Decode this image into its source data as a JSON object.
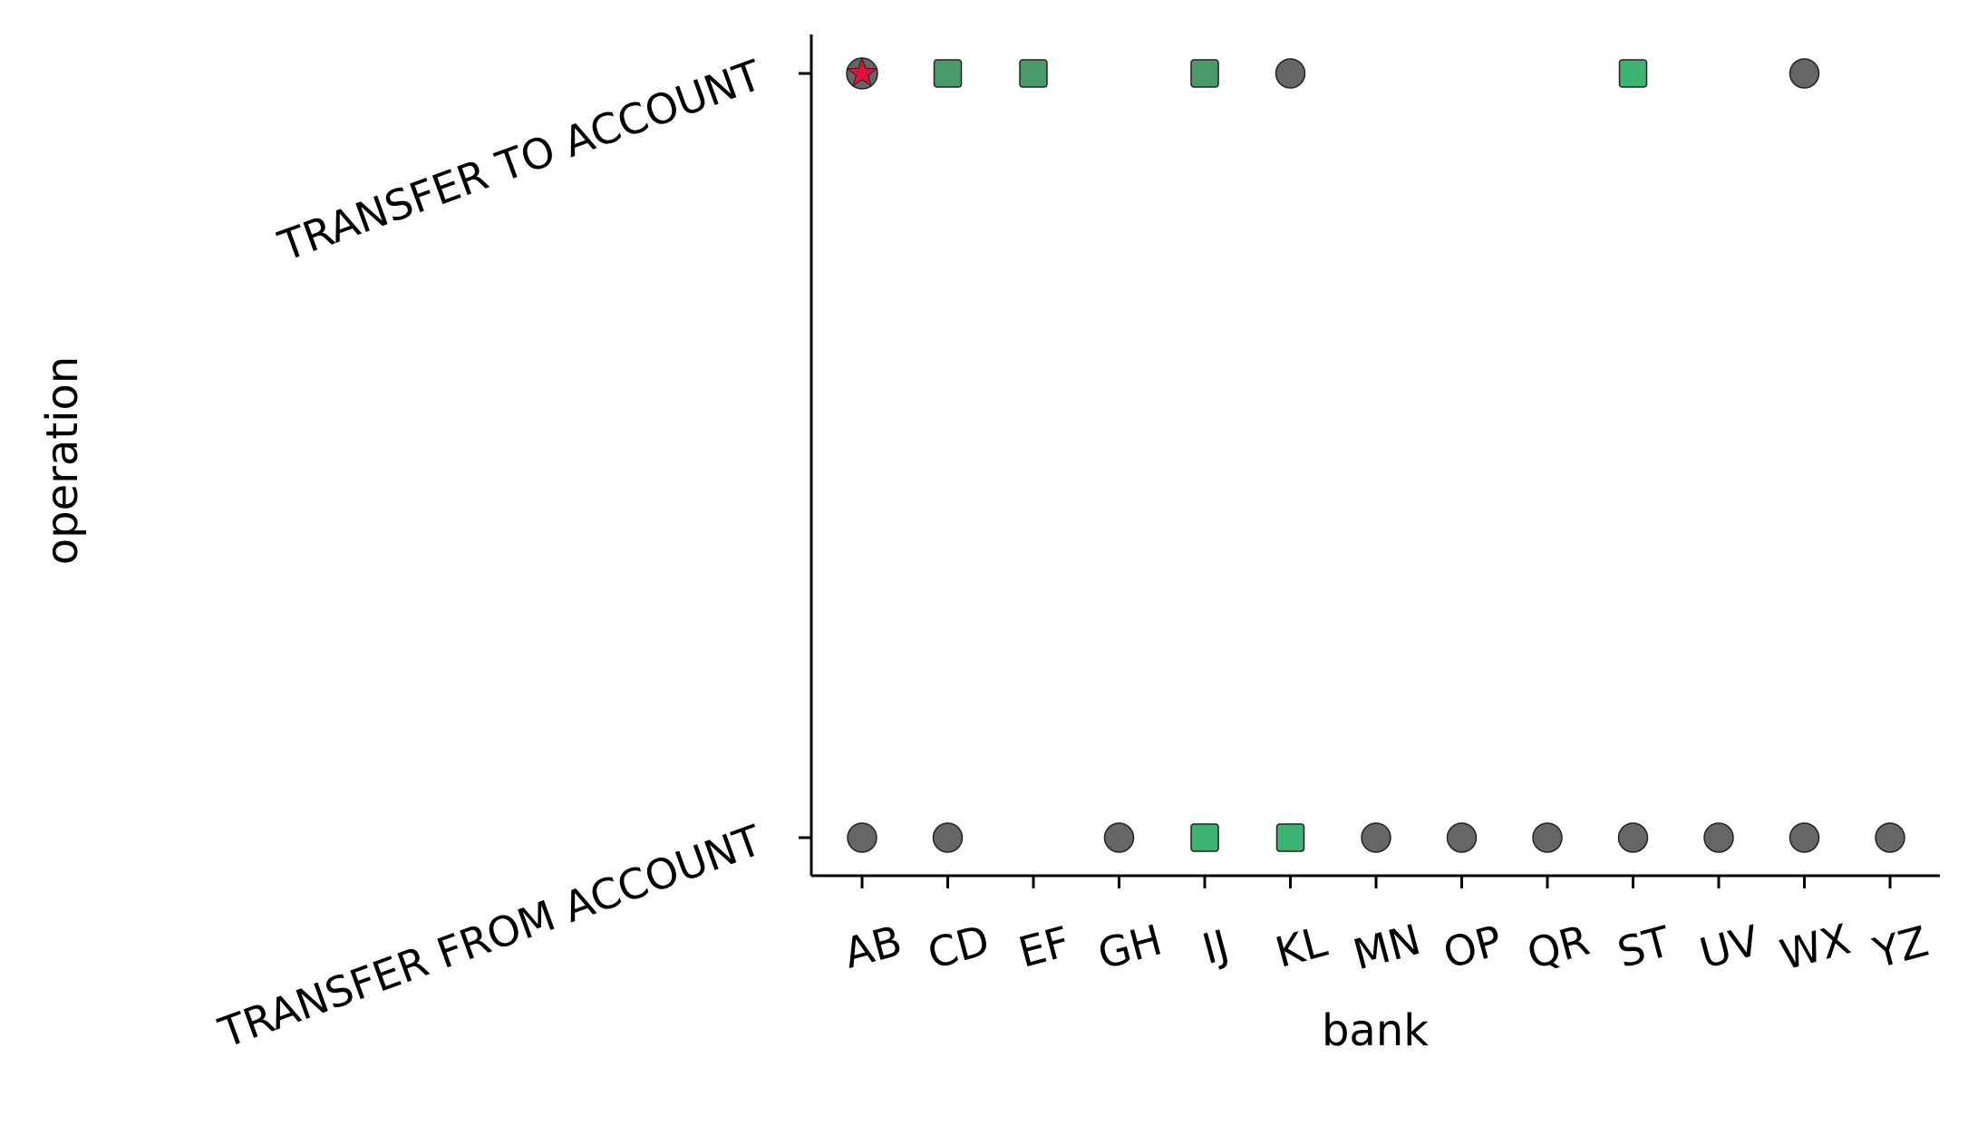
{
  "chart_data": {
    "type": "scatter",
    "title": "",
    "xlabel": "bank",
    "ylabel": "operation",
    "categories": [
      "AB",
      "CD",
      "EF",
      "GH",
      "IJ",
      "KL",
      "MN",
      "OP",
      "QR",
      "ST",
      "UV",
      "WX",
      "YZ"
    ],
    "y_categories": [
      "TRANSFER FROM ACCOUNT",
      "TRANSFER TO ACCOUNT"
    ],
    "grid": false,
    "legend": "none",
    "marker_colors": {
      "circle": "#666666",
      "square_dark": "#4a9a6a",
      "square_light": "#3cb371",
      "star": "#dc143c"
    },
    "points": [
      {
        "x": "AB",
        "y": "TRANSFER TO ACCOUNT",
        "marker": "star",
        "color": "#dc143c"
      },
      {
        "x": "CD",
        "y": "TRANSFER TO ACCOUNT",
        "marker": "square",
        "color": "#4a9a6a"
      },
      {
        "x": "EF",
        "y": "TRANSFER TO ACCOUNT",
        "marker": "square",
        "color": "#4a9a6a"
      },
      {
        "x": "IJ",
        "y": "TRANSFER TO ACCOUNT",
        "marker": "square",
        "color": "#4a9a6a"
      },
      {
        "x": "KL",
        "y": "TRANSFER TO ACCOUNT",
        "marker": "circle",
        "color": "#666666"
      },
      {
        "x": "ST",
        "y": "TRANSFER TO ACCOUNT",
        "marker": "square",
        "color": "#3cb371"
      },
      {
        "x": "WX",
        "y": "TRANSFER TO ACCOUNT",
        "marker": "circle",
        "color": "#666666"
      },
      {
        "x": "AB",
        "y": "TRANSFER FROM ACCOUNT",
        "marker": "circle",
        "color": "#666666"
      },
      {
        "x": "CD",
        "y": "TRANSFER FROM ACCOUNT",
        "marker": "circle",
        "color": "#666666"
      },
      {
        "x": "GH",
        "y": "TRANSFER FROM ACCOUNT",
        "marker": "circle",
        "color": "#666666"
      },
      {
        "x": "IJ",
        "y": "TRANSFER FROM ACCOUNT",
        "marker": "square",
        "color": "#3cb371"
      },
      {
        "x": "KL",
        "y": "TRANSFER FROM ACCOUNT",
        "marker": "square",
        "color": "#3cb371"
      },
      {
        "x": "MN",
        "y": "TRANSFER FROM ACCOUNT",
        "marker": "circle",
        "color": "#666666"
      },
      {
        "x": "OP",
        "y": "TRANSFER FROM ACCOUNT",
        "marker": "circle",
        "color": "#666666"
      },
      {
        "x": "QR",
        "y": "TRANSFER FROM ACCOUNT",
        "marker": "circle",
        "color": "#666666"
      },
      {
        "x": "ST",
        "y": "TRANSFER FROM ACCOUNT",
        "marker": "circle",
        "color": "#666666"
      },
      {
        "x": "UV",
        "y": "TRANSFER FROM ACCOUNT",
        "marker": "circle",
        "color": "#666666"
      },
      {
        "x": "WX",
        "y": "TRANSFER FROM ACCOUNT",
        "marker": "circle",
        "color": "#666666"
      },
      {
        "x": "YZ",
        "y": "TRANSFER FROM ACCOUNT",
        "marker": "circle",
        "color": "#666666"
      }
    ]
  }
}
